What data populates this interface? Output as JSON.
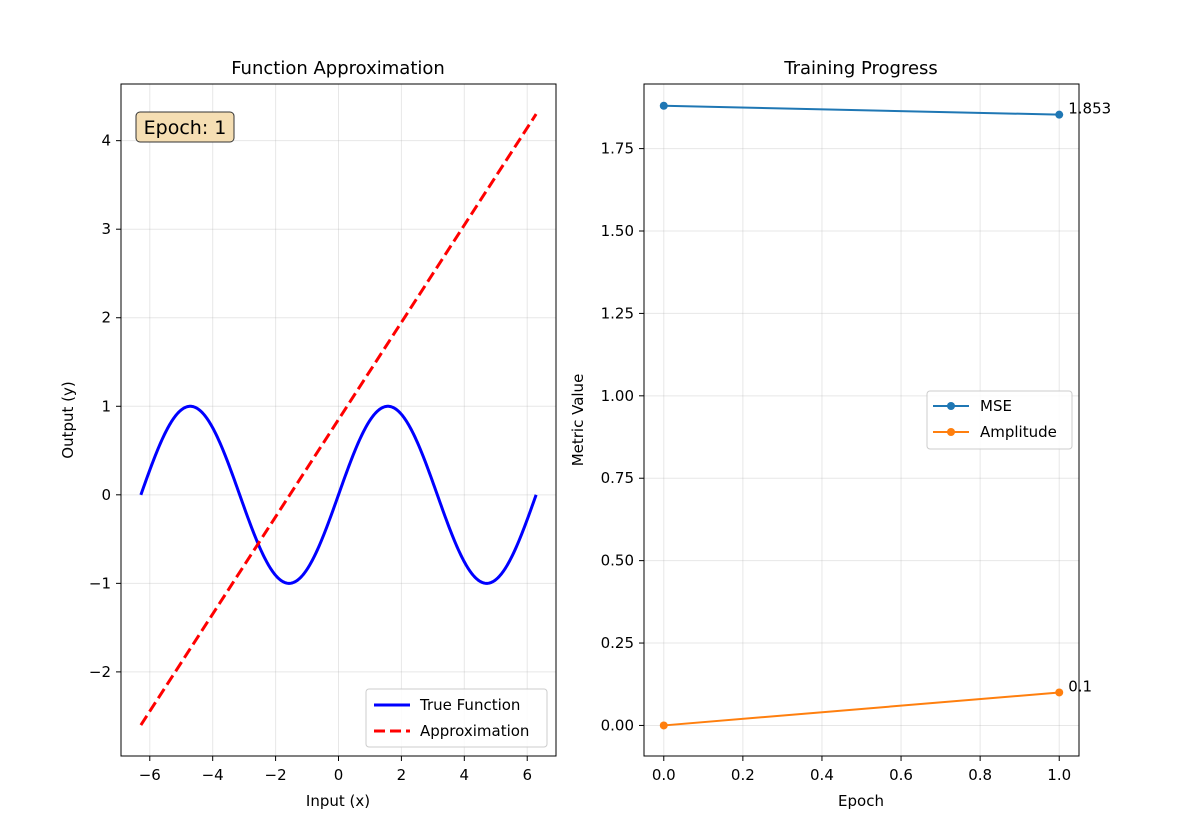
{
  "chart_data": [
    {
      "type": "line",
      "title": "Function Approximation",
      "xlabel": "Input (x)",
      "ylabel": "Output (y)",
      "xlim": [
        -6.915,
        6.915
      ],
      "ylim": [
        -2.95,
        4.64
      ],
      "xticks": [
        -6,
        -4,
        -2,
        0,
        2,
        4,
        6
      ],
      "xtick_labels": [
        "−6",
        "−4",
        "−2",
        "0",
        "2",
        "4",
        "6"
      ],
      "yticks": [
        -2,
        -1,
        0,
        1,
        2,
        3,
        4
      ],
      "ytick_labels": [
        "−2",
        "−1",
        "0",
        "1",
        "2",
        "3",
        "4"
      ],
      "grid": true,
      "legend_position": "lower-right",
      "series": [
        {
          "name": "True Function",
          "color": "#0000ff",
          "style": "solid",
          "function": "sin",
          "x_range": [
            -6.2832,
            6.2832
          ]
        },
        {
          "name": "Approximation",
          "color": "#ff0000",
          "style": "dashed",
          "x": [
            -6.2832,
            6.2832
          ],
          "y": [
            -2.6,
            4.3
          ]
        }
      ],
      "annotation": {
        "text": "Epoch: 1",
        "position": "top-left"
      }
    },
    {
      "type": "line",
      "title": "Training Progress",
      "xlabel": "Epoch",
      "ylabel": "Metric Value",
      "xlim": [
        -0.05,
        1.05
      ],
      "ylim": [
        -0.0927,
        1.946
      ],
      "xticks": [
        0.0,
        0.2,
        0.4,
        0.6,
        0.8,
        1.0
      ],
      "xtick_labels": [
        "0.0",
        "0.2",
        "0.4",
        "0.6",
        "0.8",
        "1.0"
      ],
      "yticks": [
        0.0,
        0.25,
        0.5,
        0.75,
        1.0,
        1.25,
        1.5,
        1.75
      ],
      "ytick_labels": [
        "0.00",
        "0.25",
        "0.50",
        "0.75",
        "1.00",
        "1.25",
        "1.50",
        "1.75"
      ],
      "grid": true,
      "legend_position": "center-right",
      "series": [
        {
          "name": "MSE",
          "color": "#1f77b4",
          "x": [
            0,
            1
          ],
          "y": [
            1.88,
            1.853
          ],
          "end_label": "1.853"
        },
        {
          "name": "Amplitude",
          "color": "#ff7f0e",
          "x": [
            0,
            1
          ],
          "y": [
            0.0,
            0.1
          ],
          "end_label": "0.1"
        }
      ]
    }
  ]
}
